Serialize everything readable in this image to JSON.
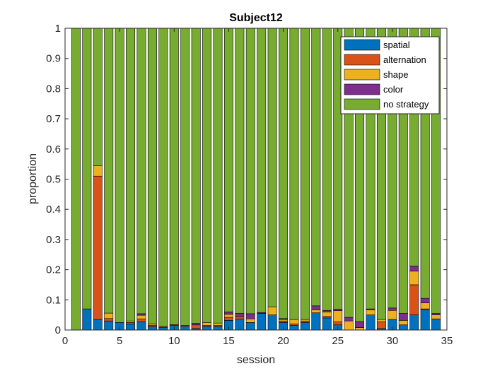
{
  "chart_data": {
    "type": "bar",
    "stacked": true,
    "title": "Subject12",
    "xlabel": "session",
    "ylabel": "proportion",
    "xlim": [
      0,
      35
    ],
    "ylim": [
      0,
      1
    ],
    "xticks": [
      0,
      5,
      10,
      15,
      20,
      25,
      30,
      35
    ],
    "yticks": [
      0,
      0.1,
      0.2,
      0.3,
      0.4,
      0.5,
      0.6,
      0.7,
      0.8,
      0.9,
      1
    ],
    "legend_position": "top-right",
    "x": [
      1,
      2,
      3,
      4,
      5,
      6,
      7,
      8,
      9,
      10,
      11,
      12,
      13,
      14,
      15,
      16,
      17,
      18,
      19,
      20,
      21,
      22,
      23,
      24,
      25,
      26,
      27,
      28,
      29,
      30,
      31,
      32,
      33,
      34
    ],
    "series": [
      {
        "name": "spatial",
        "color": "#0072BD",
        "values": [
          0,
          0.07,
          0.035,
          0.03,
          0.025,
          0.02,
          0.027,
          0.012,
          0.008,
          0.015,
          0.012,
          0.005,
          0.012,
          0.012,
          0.032,
          0.037,
          0.025,
          0.055,
          0.05,
          0.025,
          0.015,
          0.025,
          0.057,
          0.04,
          0.017,
          0,
          0,
          0.05,
          0.005,
          0.035,
          0.017,
          0.05,
          0.067,
          0.037
        ]
      },
      {
        "name": "alternation",
        "color": "#D95319",
        "values": [
          0,
          0,
          0.475,
          0.008,
          0,
          0.005,
          0.01,
          0.003,
          0.004,
          0.003,
          0.003,
          0.012,
          0.003,
          0.003,
          0.01,
          0.008,
          0,
          0,
          0,
          0.005,
          0.005,
          0.005,
          0,
          0.005,
          0.01,
          0,
          0,
          0,
          0.022,
          0,
          0,
          0.1,
          0.003,
          0
        ]
      },
      {
        "name": "shape",
        "color": "#EDB120",
        "values": [
          0,
          0,
          0.035,
          0.018,
          0,
          0.005,
          0.012,
          0.005,
          0,
          0,
          0,
          0,
          0.01,
          0.008,
          0.01,
          0,
          0.012,
          0,
          0.027,
          0.005,
          0.015,
          0.005,
          0.01,
          0.015,
          0.037,
          0.03,
          0.008,
          0.017,
          0.008,
          0.03,
          0.015,
          0.045,
          0.02,
          0.013
        ]
      },
      {
        "name": "color",
        "color": "#7E2F8E",
        "values": [
          0,
          0,
          0,
          0,
          0,
          0,
          0.005,
          0,
          0,
          0,
          0,
          0.005,
          0,
          0,
          0.008,
          0.01,
          0.017,
          0.003,
          0,
          0.003,
          0,
          0,
          0.013,
          0.005,
          0.005,
          0.012,
          0.02,
          0.003,
          0,
          0.008,
          0.023,
          0.017,
          0.015,
          0.005
        ]
      },
      {
        "name": "no strategy",
        "color": "#77AC30",
        "values": [
          1,
          0.93,
          0.455,
          0.944,
          0.975,
          0.97,
          0.946,
          0.98,
          0.988,
          0.982,
          0.985,
          0.978,
          0.975,
          0.977,
          0.94,
          0.945,
          0.946,
          0.942,
          0.923,
          0.962,
          0.965,
          0.965,
          0.92,
          0.935,
          0.931,
          0.958,
          0.972,
          0.93,
          0.965,
          0.927,
          0.945,
          0.788,
          0.895,
          0.945
        ]
      }
    ]
  }
}
